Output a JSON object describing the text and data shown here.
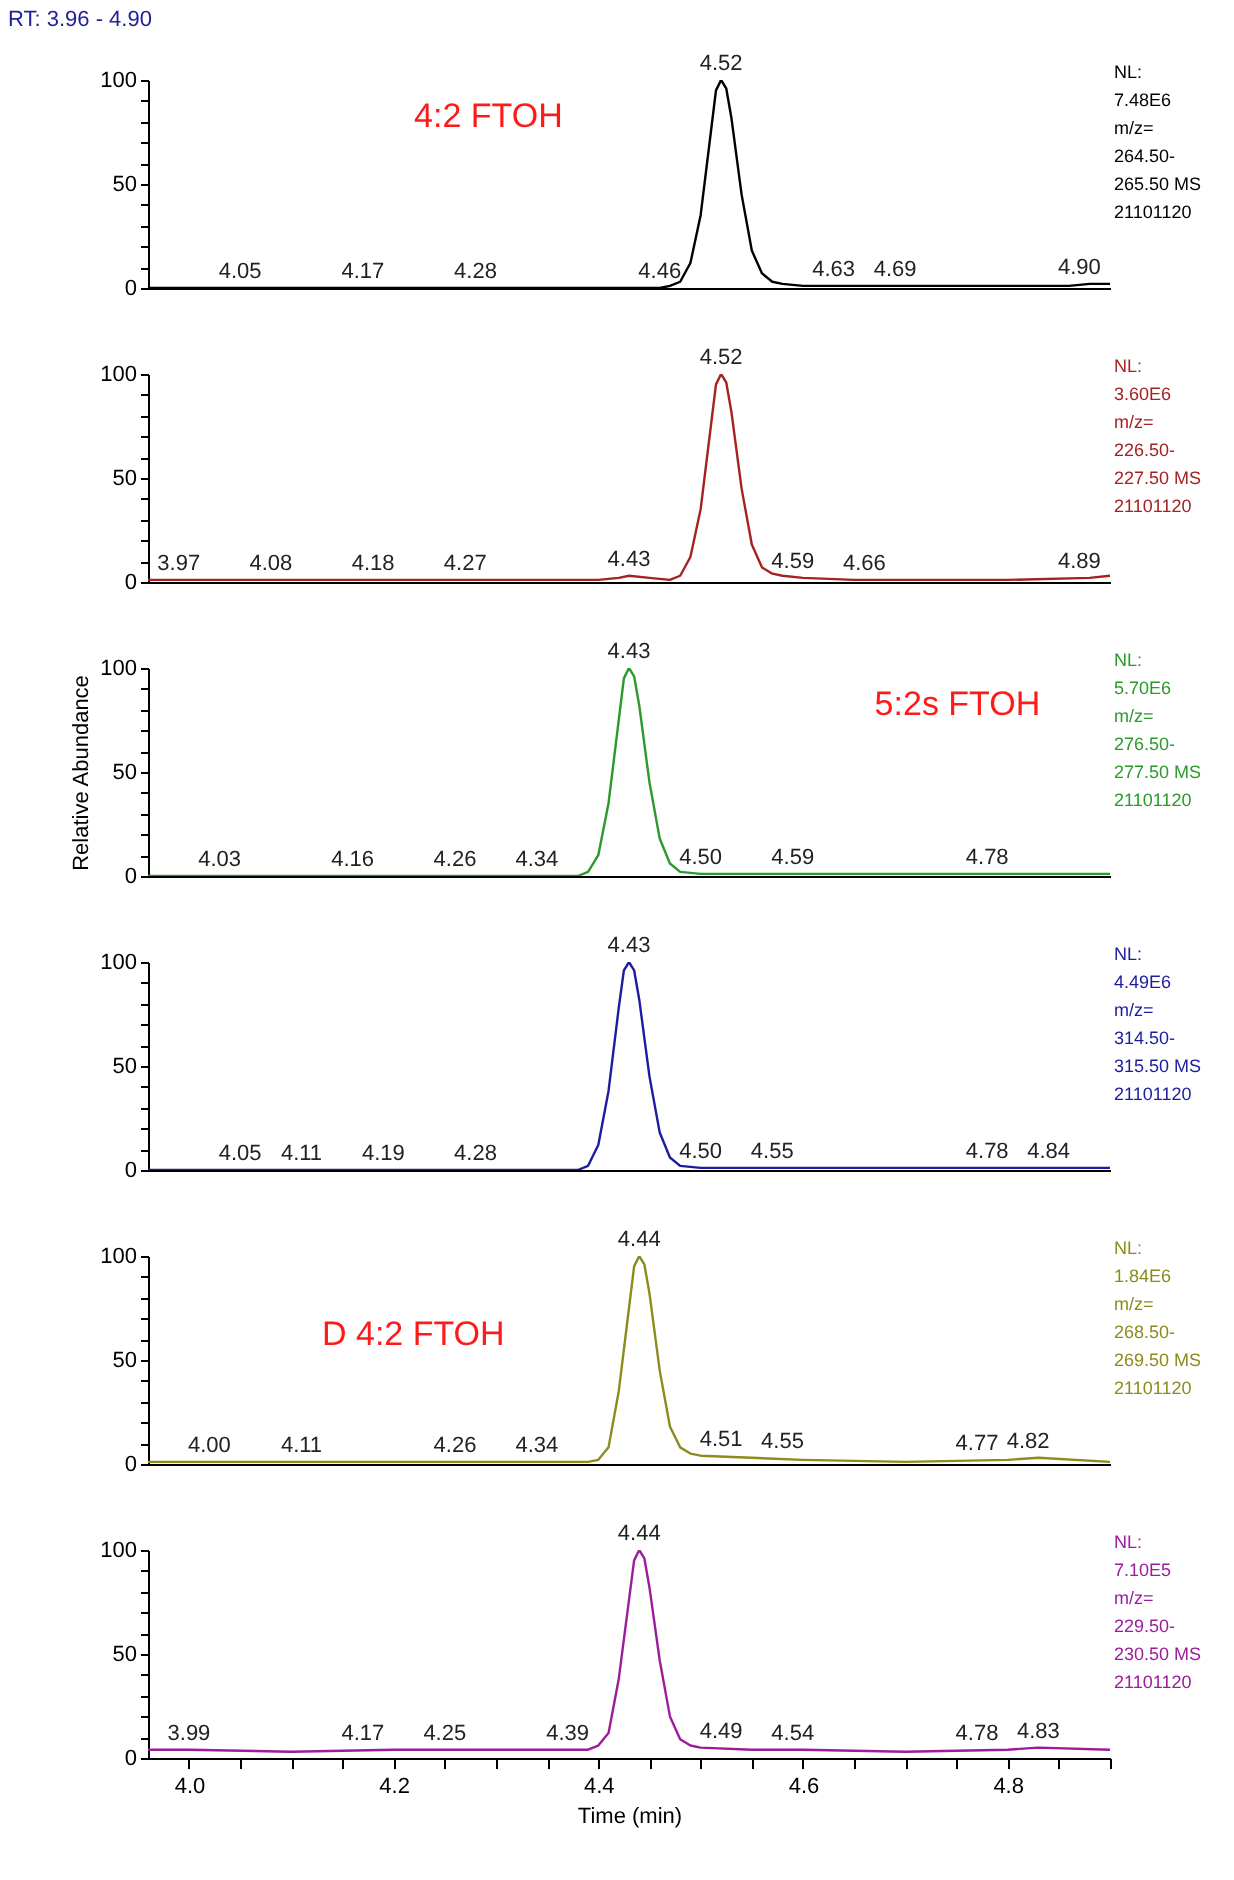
{
  "chart_data": [
    {
      "type": "line",
      "title": "RT: 3.96 - 4.90",
      "subtitle": "4:2 FTOH",
      "xlim": [
        3.96,
        4.9
      ],
      "ylim": [
        0,
        100
      ],
      "yticks": [
        0,
        {
          "value": 10,
          "label": null
        },
        {
          "value": 20,
          "label": null
        },
        {
          "value": 30,
          "label": null
        },
        {
          "value": 40,
          "label": null
        },
        50,
        {
          "value": 60,
          "label": null
        },
        {
          "value": 70,
          "label": null
        },
        {
          "value": 80,
          "label": null
        },
        {
          "value": 90,
          "label": null
        },
        100
      ],
      "tick_labels": "y",
      "series": [
        {
          "color": "#000000",
          "x": [
            3.96,
            4.0,
            4.1,
            4.2,
            4.3,
            4.4,
            4.46,
            4.47,
            4.48,
            4.49,
            4.5,
            4.51,
            4.515,
            4.52,
            4.525,
            4.53,
            4.54,
            4.55,
            4.56,
            4.57,
            4.58,
            4.6,
            4.65,
            4.7,
            4.8,
            4.86,
            4.88,
            4.9
          ],
          "values": [
            0,
            0,
            0,
            0,
            0,
            0,
            0,
            1,
            3,
            12,
            35,
            75,
            95,
            100,
            96,
            82,
            45,
            18,
            7,
            3,
            2,
            1,
            1,
            1,
            1,
            1,
            2,
            2
          ]
        }
      ],
      "annotations": [
        {
          "text": "4.52",
          "x": 4.52,
          "y": 100
        },
        {
          "text": "4.05",
          "x": 4.05,
          "y": 0
        },
        {
          "text": "4.17",
          "x": 4.17,
          "y": 0
        },
        {
          "text": "4.28",
          "x": 4.28,
          "y": 0
        },
        {
          "text": "4.46",
          "x": 4.46,
          "y": 0
        },
        {
          "text": "4.63",
          "x": 4.63,
          "y": 1
        },
        {
          "text": "4.69",
          "x": 4.69,
          "y": 1
        },
        {
          "text": "4.90",
          "x": 4.87,
          "y": 2
        },
        "NL:",
        "7.48E6",
        "m/z=",
        "264.50-",
        "265.50  MS",
        "21101120"
      ]
    },
    {
      "type": "line",
      "xlim": [
        3.96,
        4.9
      ],
      "ylim": [
        0,
        100
      ],
      "yticks": [
        0,
        {
          "value": 10,
          "label": null
        },
        {
          "value": 20,
          "label": null
        },
        {
          "value": 30,
          "label": null
        },
        {
          "value": 40,
          "label": null
        },
        50,
        {
          "value": 60,
          "label": null
        },
        {
          "value": 70,
          "label": null
        },
        {
          "value": 80,
          "label": null
        },
        {
          "value": 90,
          "label": null
        },
        100
      ],
      "tick_labels": "y",
      "series": [
        {
          "color": "#a52222",
          "x": [
            3.96,
            4.0,
            4.1,
            4.2,
            4.3,
            4.4,
            4.42,
            4.43,
            4.45,
            4.47,
            4.48,
            4.49,
            4.5,
            4.51,
            4.515,
            4.52,
            4.525,
            4.53,
            4.54,
            4.55,
            4.56,
            4.57,
            4.58,
            4.6,
            4.65,
            4.7,
            4.8,
            4.88,
            4.9
          ],
          "values": [
            1,
            1,
            1,
            1,
            1,
            1,
            2,
            3,
            2,
            1,
            3,
            12,
            35,
            75,
            95,
            100,
            96,
            82,
            45,
            18,
            7,
            4,
            3,
            2,
            1,
            1,
            1,
            2,
            3
          ]
        }
      ],
      "annotations": [
        {
          "text": "4.52",
          "x": 4.52,
          "y": 100
        },
        {
          "text": "3.97",
          "x": 3.99,
          "y": 1
        },
        {
          "text": "4.08",
          "x": 4.08,
          "y": 1
        },
        {
          "text": "4.18",
          "x": 4.18,
          "y": 1
        },
        {
          "text": "4.27",
          "x": 4.27,
          "y": 1
        },
        {
          "text": "4.43",
          "x": 4.43,
          "y": 3
        },
        {
          "text": "4.59",
          "x": 4.59,
          "y": 2
        },
        {
          "text": "4.66",
          "x": 4.66,
          "y": 1
        },
        {
          "text": "4.89",
          "x": 4.87,
          "y": 2
        },
        "NL:",
        "3.60E6",
        "m/z=",
        "226.50-",
        "227.50  MS",
        "21101120"
      ]
    },
    {
      "type": "line",
      "subtitle": "5:2s FTOH",
      "ylabel": "Relative Abundance",
      "xlim": [
        3.96,
        4.9
      ],
      "ylim": [
        0,
        100
      ],
      "yticks": [
        0,
        {
          "value": 10,
          "label": null
        },
        {
          "value": 20,
          "label": null
        },
        {
          "value": 30,
          "label": null
        },
        {
          "value": 40,
          "label": null
        },
        50,
        {
          "value": 60,
          "label": null
        },
        {
          "value": 70,
          "label": null
        },
        {
          "value": 80,
          "label": null
        },
        {
          "value": 90,
          "label": null
        },
        100
      ],
      "tick_labels": "y",
      "series": [
        {
          "color": "#2b9a2b",
          "x": [
            3.96,
            4.0,
            4.1,
            4.2,
            4.3,
            4.38,
            4.39,
            4.4,
            4.41,
            4.42,
            4.425,
            4.43,
            4.435,
            4.44,
            4.45,
            4.46,
            4.47,
            4.48,
            4.5,
            4.55,
            4.6,
            4.7,
            4.8,
            4.9
          ],
          "values": [
            0,
            0,
            0,
            0,
            0,
            0,
            2,
            10,
            35,
            75,
            95,
            100,
            96,
            82,
            45,
            18,
            6,
            2,
            1,
            1,
            1,
            1,
            1,
            1
          ]
        }
      ],
      "annotations": [
        {
          "text": "4.43",
          "x": 4.43,
          "y": 100
        },
        {
          "text": "4.03",
          "x": 4.03,
          "y": 0
        },
        {
          "text": "4.16",
          "x": 4.16,
          "y": 0
        },
        {
          "text": "4.26",
          "x": 4.26,
          "y": 0
        },
        {
          "text": "4.34",
          "x": 4.34,
          "y": 0
        },
        {
          "text": "4.50",
          "x": 4.5,
          "y": 1
        },
        {
          "text": "4.59",
          "x": 4.59,
          "y": 1
        },
        {
          "text": "4.78",
          "x": 4.78,
          "y": 1
        },
        "NL:",
        "5.70E6",
        "m/z=",
        "276.50-",
        "277.50  MS",
        "21101120"
      ]
    },
    {
      "type": "line",
      "xlim": [
        3.96,
        4.9
      ],
      "ylim": [
        0,
        100
      ],
      "yticks": [
        0,
        {
          "value": 10,
          "label": null
        },
        {
          "value": 20,
          "label": null
        },
        {
          "value": 30,
          "label": null
        },
        {
          "value": 40,
          "label": null
        },
        50,
        {
          "value": 60,
          "label": null
        },
        {
          "value": 70,
          "label": null
        },
        {
          "value": 80,
          "label": null
        },
        {
          "value": 90,
          "label": null
        },
        100
      ],
      "tick_labels": "y",
      "series": [
        {
          "color": "#1c1ca0",
          "x": [
            3.96,
            4.0,
            4.1,
            4.2,
            4.3,
            4.38,
            4.39,
            4.4,
            4.41,
            4.42,
            4.425,
            4.43,
            4.435,
            4.44,
            4.45,
            4.46,
            4.47,
            4.48,
            4.5,
            4.55,
            4.6,
            4.7,
            4.78,
            4.8,
            4.9
          ],
          "values": [
            0,
            0,
            0,
            0,
            0,
            0,
            2,
            12,
            38,
            78,
            96,
            100,
            96,
            82,
            45,
            18,
            6,
            2,
            1,
            1,
            1,
            1,
            1,
            1,
            1
          ]
        }
      ],
      "annotations": [
        {
          "text": "4.43",
          "x": 4.43,
          "y": 100
        },
        {
          "text": "4.05",
          "x": 4.05,
          "y": 0
        },
        {
          "text": "4.11",
          "x": 4.11,
          "y": 0
        },
        {
          "text": "4.19",
          "x": 4.19,
          "y": 0
        },
        {
          "text": "4.28",
          "x": 4.28,
          "y": 0
        },
        {
          "text": "4.50",
          "x": 4.5,
          "y": 1
        },
        {
          "text": "4.55",
          "x": 4.57,
          "y": 1
        },
        {
          "text": "4.78",
          "x": 4.78,
          "y": 1
        },
        {
          "text": "4.84",
          "x": 4.84,
          "y": 1
        },
        "NL:",
        "4.49E6",
        "m/z=",
        "314.50-",
        "315.50  MS",
        "21101120"
      ]
    },
    {
      "type": "line",
      "subtitle": "D 4:2 FTOH",
      "xlim": [
        3.96,
        4.9
      ],
      "ylim": [
        0,
        100
      ],
      "yticks": [
        0,
        {
          "value": 10,
          "label": null
        },
        {
          "value": 20,
          "label": null
        },
        {
          "value": 30,
          "label": null
        },
        {
          "value": 40,
          "label": null
        },
        50,
        {
          "value": 60,
          "label": null
        },
        {
          "value": 70,
          "label": null
        },
        {
          "value": 80,
          "label": null
        },
        {
          "value": 90,
          "label": null
        },
        100
      ],
      "tick_labels": "y",
      "series": [
        {
          "color": "#8c8c1c",
          "x": [
            3.96,
            4.0,
            4.1,
            4.2,
            4.3,
            4.39,
            4.4,
            4.41,
            4.42,
            4.43,
            4.435,
            4.44,
            4.445,
            4.45,
            4.46,
            4.47,
            4.48,
            4.49,
            4.5,
            4.55,
            4.6,
            4.7,
            4.8,
            4.83,
            4.9
          ],
          "values": [
            1,
            1,
            1,
            1,
            1,
            1,
            2,
            8,
            35,
            75,
            95,
            100,
            96,
            82,
            45,
            18,
            8,
            5,
            4,
            3,
            2,
            1,
            2,
            3,
            1
          ]
        }
      ],
      "annotations": [
        {
          "text": "4.44",
          "x": 4.44,
          "y": 100
        },
        {
          "text": "4.00",
          "x": 4.02,
          "y": 1
        },
        {
          "text": "4.11",
          "x": 4.11,
          "y": 1
        },
        {
          "text": "4.26",
          "x": 4.26,
          "y": 1
        },
        {
          "text": "4.34",
          "x": 4.34,
          "y": 1
        },
        {
          "text": "4.51",
          "x": 4.52,
          "y": 4
        },
        {
          "text": "4.55",
          "x": 4.58,
          "y": 3
        },
        {
          "text": "4.77",
          "x": 4.77,
          "y": 2
        },
        {
          "text": "4.82",
          "x": 4.82,
          "y": 3
        },
        "NL:",
        "1.84E6",
        "m/z=",
        "268.50-",
        "269.50  MS",
        "21101120"
      ]
    },
    {
      "type": "line",
      "xlabel": "Time (min)",
      "xlim": [
        3.96,
        4.9
      ],
      "xticks": [
        {
          "value": 4,
          "label": "4.0"
        },
        {
          "value": 4.05,
          "label": null
        },
        {
          "value": 4.1,
          "label": null
        },
        {
          "value": 4.15,
          "label": null
        },
        4.2,
        {
          "value": 4.25,
          "label": null
        },
        {
          "value": 4.3,
          "label": null
        },
        {
          "value": 4.35,
          "label": null
        },
        4.4,
        {
          "value": 4.45,
          "label": null
        },
        {
          "value": 4.5,
          "label": null
        },
        {
          "value": 4.55,
          "label": null
        },
        4.6,
        {
          "value": 4.65,
          "label": null
        },
        {
          "value": 4.7,
          "label": null
        },
        {
          "value": 4.75,
          "label": null
        },
        4.8,
        {
          "value": 4.85,
          "label": null
        },
        {
          "value": 4.9,
          "label": null
        }
      ],
      "ylim": [
        0,
        100
      ],
      "yticks": [
        0,
        {
          "value": 10,
          "label": null
        },
        {
          "value": 20,
          "label": null
        },
        {
          "value": 30,
          "label": null
        },
        {
          "value": 40,
          "label": null
        },
        50,
        {
          "value": 60,
          "label": null
        },
        {
          "value": 70,
          "label": null
        },
        {
          "value": 80,
          "label": null
        },
        {
          "value": 90,
          "label": null
        },
        100
      ],
      "series": [
        {
          "color": "#9c1c9c",
          "x": [
            3.96,
            4.0,
            4.1,
            4.2,
            4.3,
            4.39,
            4.4,
            4.41,
            4.42,
            4.43,
            4.435,
            4.44,
            4.445,
            4.45,
            4.46,
            4.47,
            4.48,
            4.49,
            4.5,
            4.55,
            4.6,
            4.7,
            4.8,
            4.83,
            4.9
          ],
          "values": [
            4,
            4,
            3,
            4,
            4,
            4,
            6,
            12,
            38,
            76,
            95,
            100,
            96,
            82,
            47,
            20,
            9,
            6,
            5,
            4,
            4,
            3,
            4,
            5,
            4
          ]
        }
      ],
      "annotations": [
        {
          "text": "4.44",
          "x": 4.44,
          "y": 100
        },
        {
          "text": "3.99",
          "x": 4.0,
          "y": 4
        },
        {
          "text": "4.17",
          "x": 4.17,
          "y": 4
        },
        {
          "text": "4.25",
          "x": 4.25,
          "y": 4
        },
        {
          "text": "4.39",
          "x": 4.37,
          "y": 4
        },
        {
          "text": "4.49",
          "x": 4.52,
          "y": 5
        },
        {
          "text": "4.54",
          "x": 4.59,
          "y": 4
        },
        {
          "text": "4.78",
          "x": 4.77,
          "y": 4
        },
        {
          "text": "4.83",
          "x": 4.83,
          "y": 5
        },
        "NL:",
        "7.10E5",
        "m/z=",
        "229.50-",
        "230.50  MS",
        "21101120"
      ]
    }
  ]
}
